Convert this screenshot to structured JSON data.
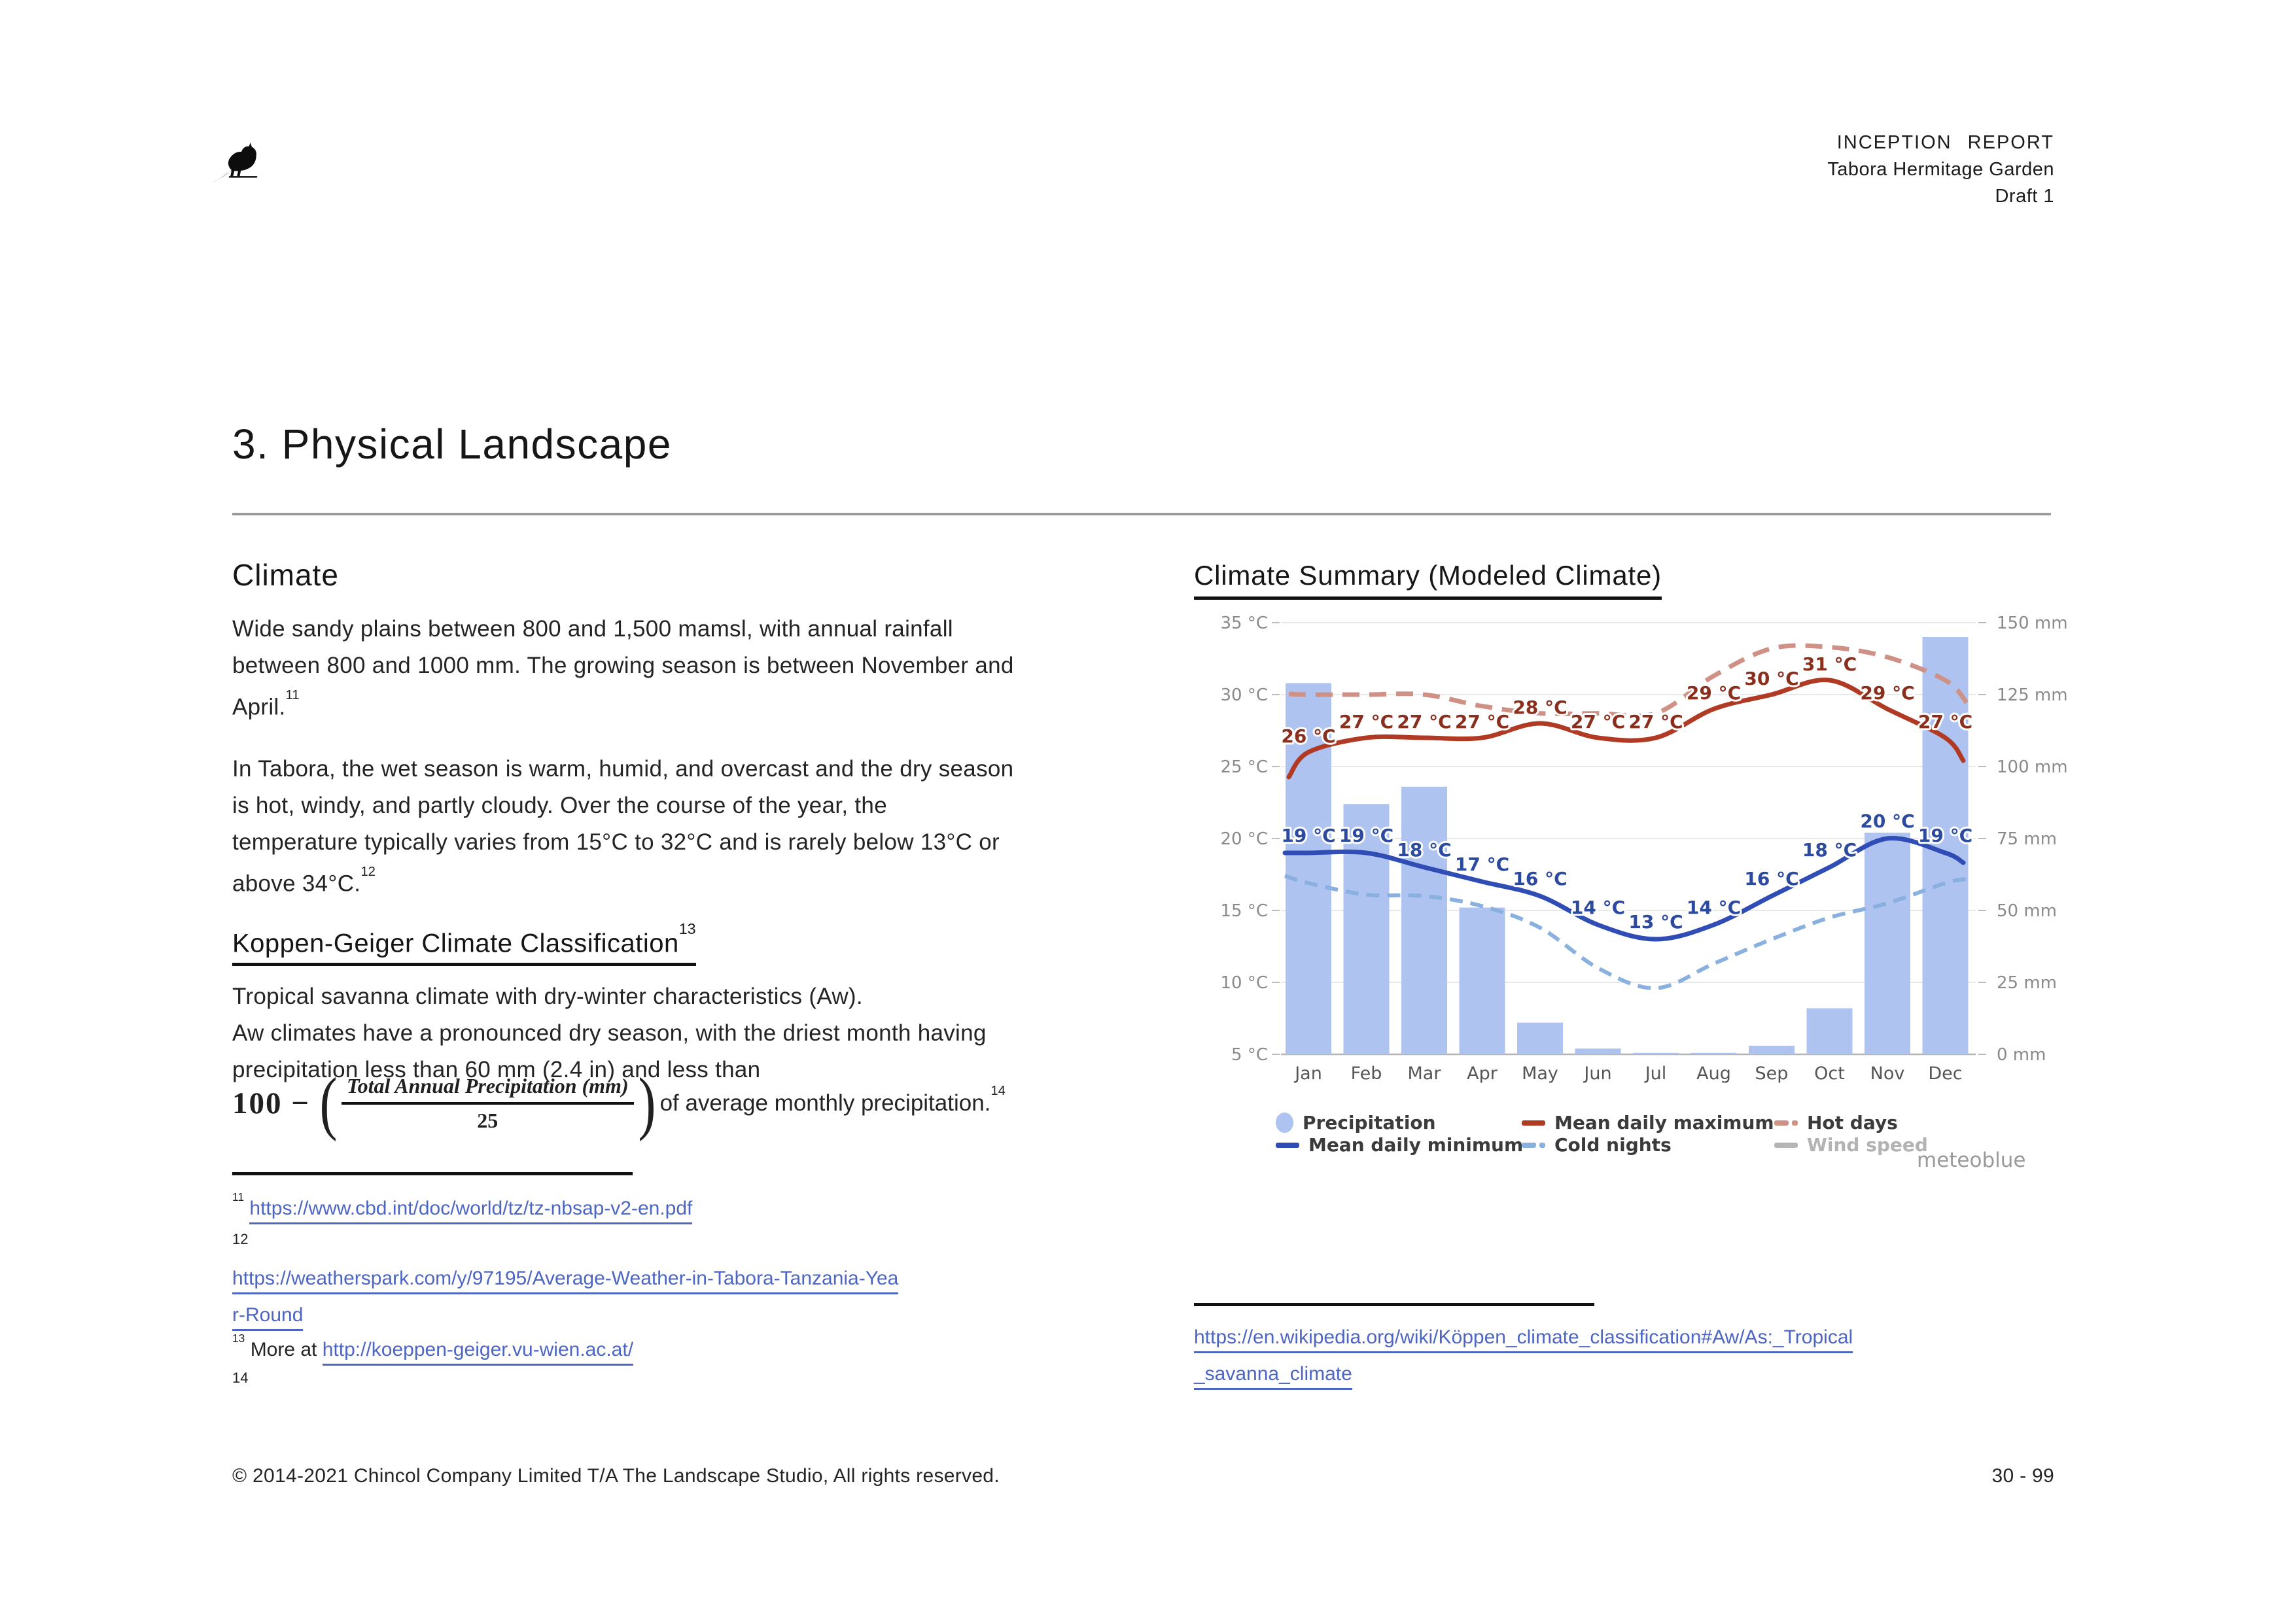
{
  "header": {
    "report_type": "INCEPTION REPORT",
    "project": "Tabora Hermitage Garden",
    "version": "Draft 1"
  },
  "page": {
    "title": "3. Physical Landscape"
  },
  "icons": {
    "logo": "bird-silhouette"
  },
  "colors": {
    "link": "#4d66c4",
    "heading_rule": "#9a9a9a",
    "text": "#202020",
    "separator": "#111111"
  },
  "left": {
    "climate": {
      "heading": "Climate",
      "p1": {
        "lines": [
          "Wide sandy plains between 800 and 1,500 mamsl, with annual rainfall",
          "between 800 and 1000 mm. The growing season is between November and",
          "April."
        ],
        "sup": "11"
      },
      "p2": {
        "lines": [
          "In Tabora, the wet season is warm, humid, and overcast and the dry season",
          "is hot, windy, and partly cloudy. Over the course of the year, the",
          "temperature typically varies from 15°C to 32°C and is rarely below 13°C or",
          "above 34°C."
        ],
        "sup": "12"
      }
    },
    "koppen": {
      "heading": "Koppen-Geiger Climate Classification",
      "sup": "13",
      "p1": "Tropical savanna climate with dry-winter characteristics (Aw).",
      "p2": {
        "lines": [
          "Aw climates have a pronounced dry season, with the driest month having",
          "precipitation less than 60 mm (2.4 in) and less than"
        ]
      },
      "formula": {
        "prefix": "100 −",
        "open_paren": "(",
        "numerator": "Total Annual Precipitation (mm)",
        "denominator": "25",
        "close_paren": ")",
        "suffix": "of average monthly precipitation.",
        "sup": "14"
      }
    },
    "footnotes": {
      "fn11": {
        "sup": "11",
        "url": "https://www.cbd.int/doc/world/tz/tz-nbsap-v2-en.pdf"
      },
      "fn12": {
        "sup": "12"
      },
      "weatherspark": {
        "lines": [
          "https://weatherspark.com/y/97195/Average-Weather-in-Tabora-Tanzania-Yea",
          "r-Round"
        ]
      },
      "fn13": {
        "sup": "13",
        "text": "More at ",
        "url": "http://koeppen-geiger.vu-wien.ac.at/"
      },
      "fn14": {
        "sup": "14"
      }
    }
  },
  "right": {
    "wiki": {
      "lines": [
        "https://en.wikipedia.org/wiki/Köppen_climate_classification#Aw/As:_Tropical",
        "_savanna_climate"
      ]
    }
  },
  "chart_data": {
    "type": "bar",
    "title": "Climate Summary (Modeled Climate)",
    "subtitle": "",
    "brand": "meteoblue",
    "categories": [
      "Jan",
      "Feb",
      "Mar",
      "Apr",
      "May",
      "Jun",
      "Jul",
      "Aug",
      "Sep",
      "Oct",
      "Nov",
      "Dec"
    ],
    "series": [
      {
        "name": "Precipitation",
        "type": "bar",
        "unit": "mm",
        "color": "#afc3f1",
        "values": [
          129,
          87,
          93,
          51,
          11,
          2,
          0.5,
          0.5,
          3,
          16,
          77,
          145
        ]
      },
      {
        "name": "Mean daily maximum",
        "type": "line",
        "unit": "°C",
        "color": "#b03a24",
        "width": 7,
        "values": [
          26,
          27,
          27,
          27,
          28,
          27,
          27,
          29,
          30,
          31,
          29,
          27
        ],
        "labeled": true
      },
      {
        "name": "Hot days",
        "type": "line",
        "style": "dashed",
        "dash": "26 15",
        "unit": "°C",
        "color": "#cf9186",
        "width": 7,
        "values": [
          30,
          30,
          30,
          29.2,
          28.7,
          28.7,
          28.7,
          31.3,
          33.2,
          33.3,
          32.6,
          31
        ]
      },
      {
        "name": "Mean daily minimum",
        "type": "line",
        "unit": "°C",
        "color": "#2f4db5",
        "width": 7,
        "values": [
          19,
          19,
          18,
          17,
          16,
          14,
          13,
          14,
          16,
          18,
          20,
          19
        ],
        "labeled": true
      },
      {
        "name": "Cold nights",
        "type": "line",
        "style": "dashed",
        "dash": "20 12",
        "unit": "°C",
        "color": "#8ab0df",
        "width": 6,
        "values": [
          16.9,
          16.1,
          16,
          15.3,
          13.8,
          11,
          9.6,
          11.3,
          13,
          14.5,
          15.5,
          16.9
        ]
      },
      {
        "name": "Wind speed",
        "type": "line",
        "unit": "km/h",
        "color": "#b5b5b5",
        "values": [],
        "disabled": true
      }
    ],
    "y_left": {
      "axis": "temperature",
      "labels": [
        "35 °C",
        "30 °C",
        "25 °C",
        "20 °C",
        "15 °C",
        "10 °C",
        "5 °C"
      ],
      "min": 5,
      "max": 35
    },
    "y_right": {
      "axis": "precipitation",
      "labels": [
        "150 mm",
        "125 mm",
        "100 mm",
        "75 mm",
        "50 mm",
        "25 mm",
        "0 mm"
      ],
      "min": 0,
      "max": 150
    },
    "grid": true,
    "legend_position": "bottom"
  },
  "footer": {
    "copyright": "© 2014-2021 Chincol Company Limited T/A The Landscape Studio, All rights reserved.",
    "page": "30 - 99"
  }
}
